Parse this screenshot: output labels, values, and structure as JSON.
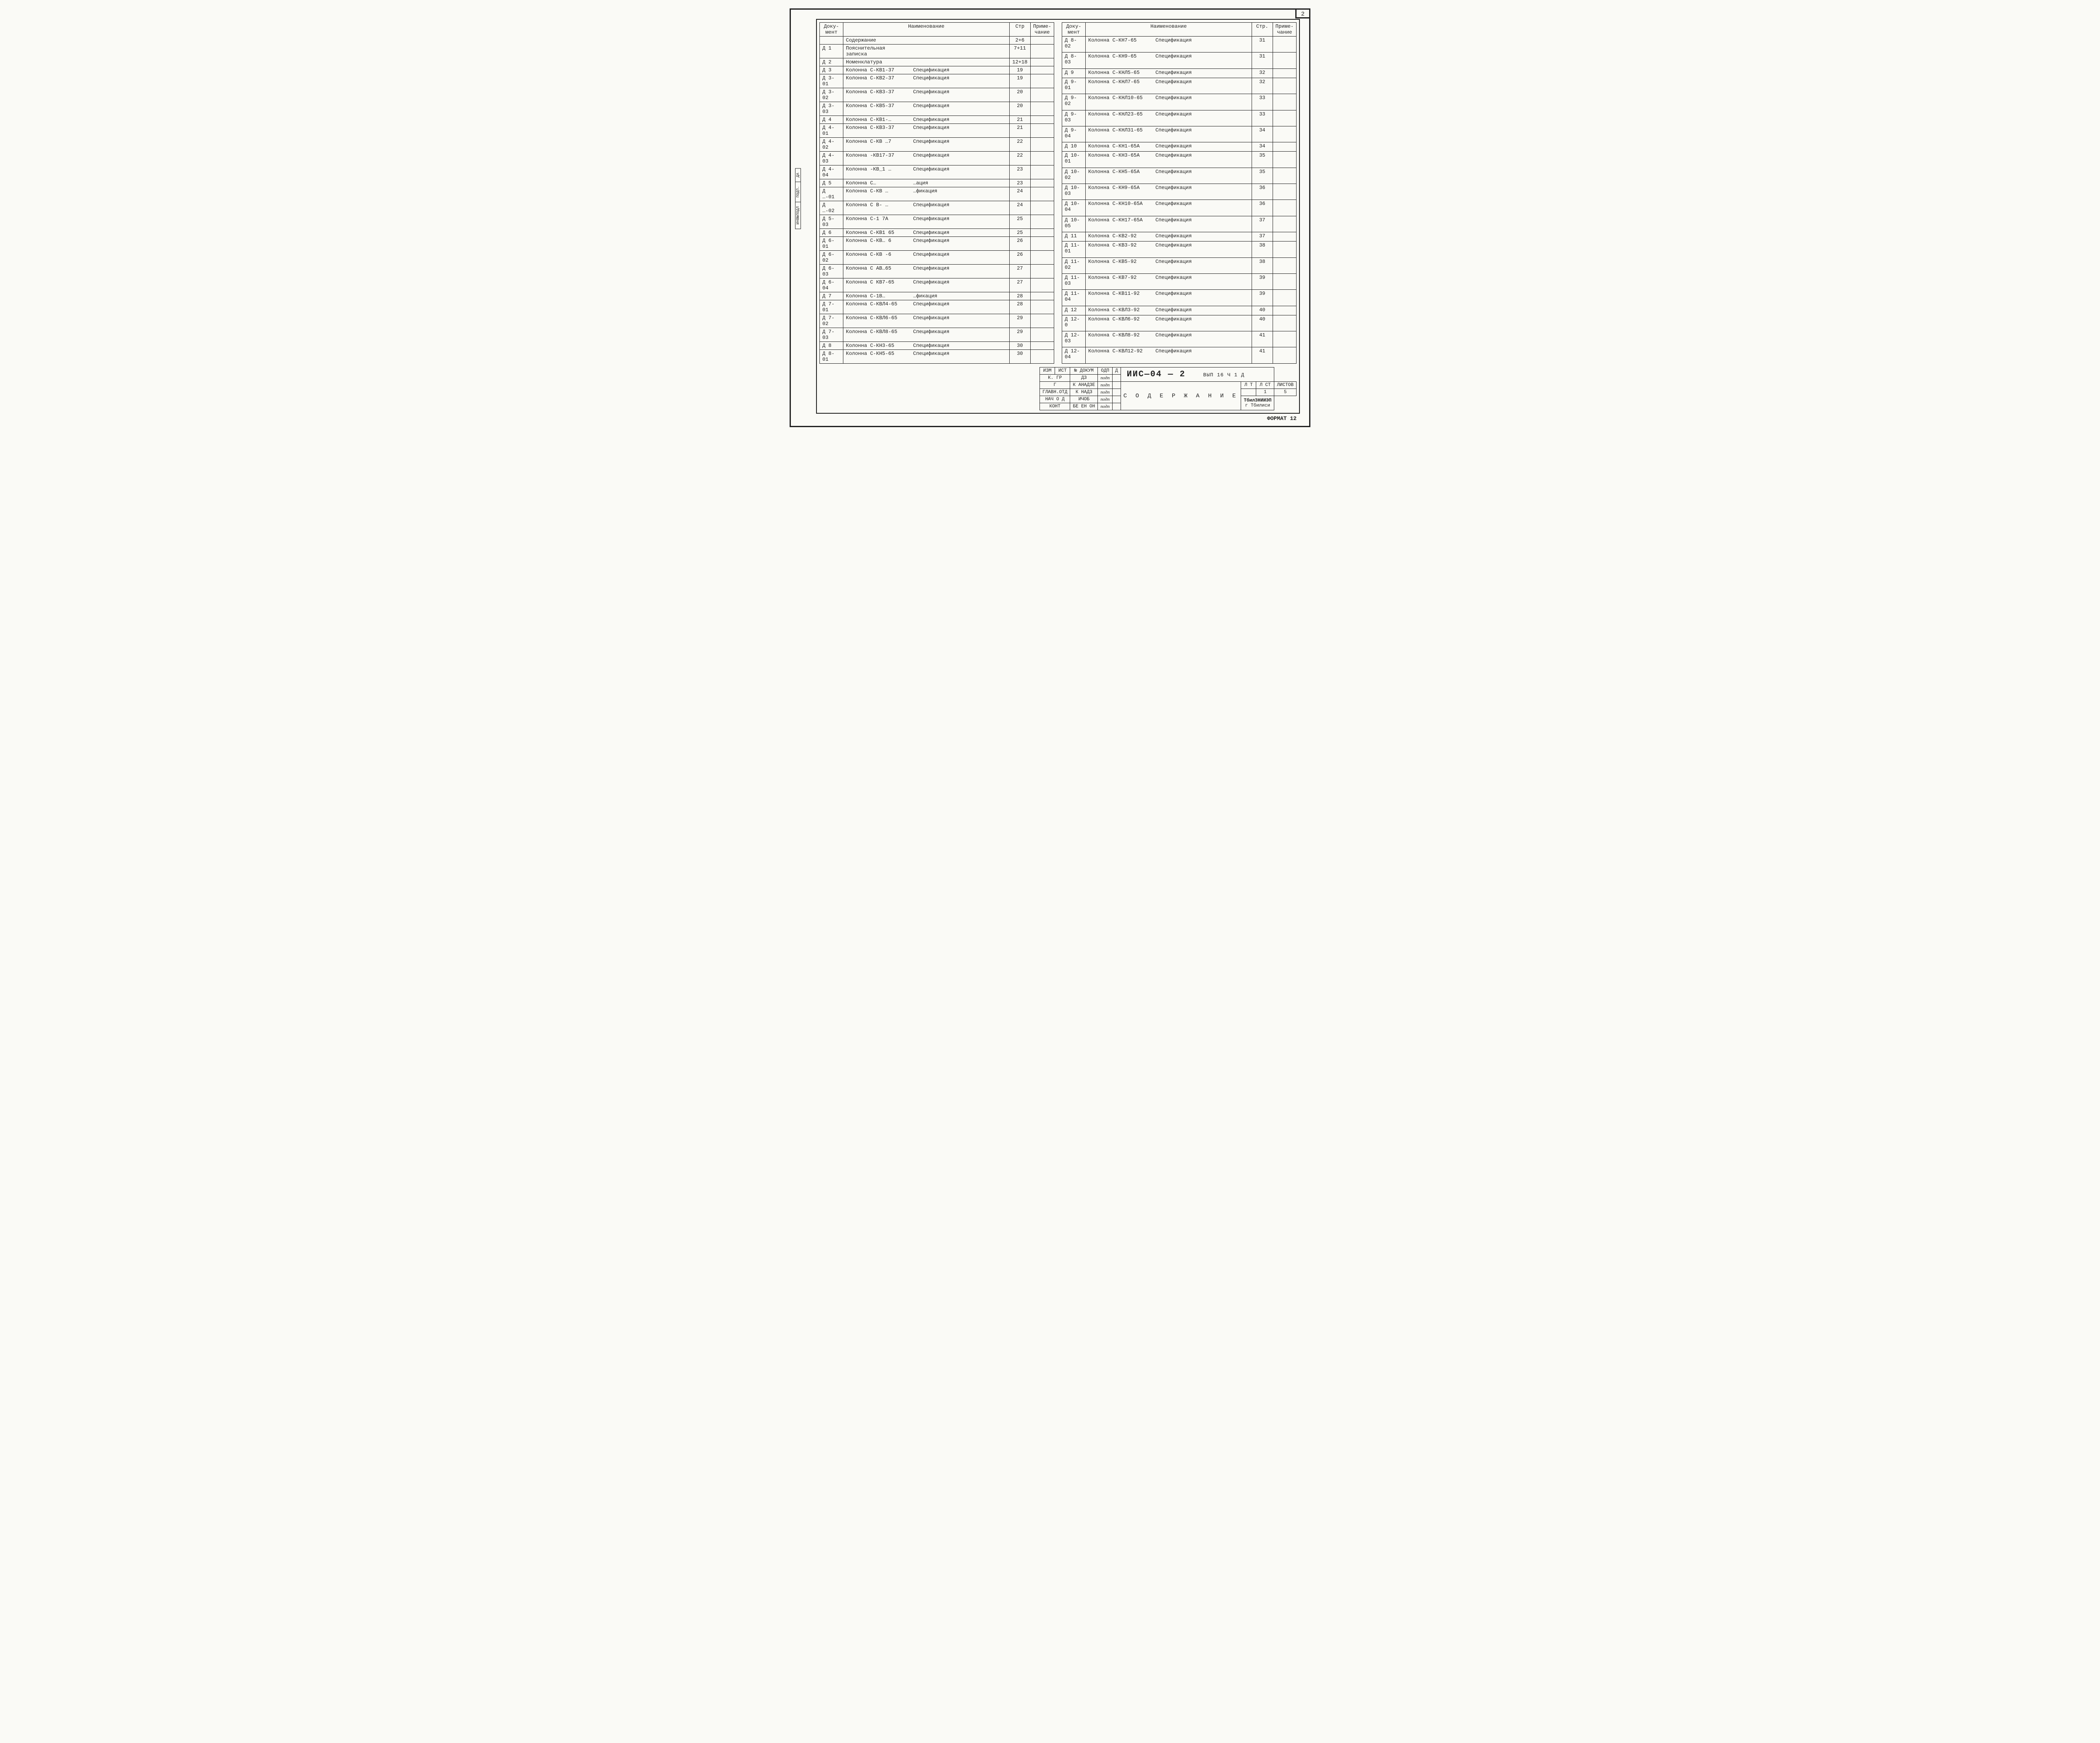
{
  "page_number": "2",
  "format_label": "ФОРМАТ 12",
  "headers": {
    "doc": "Доку-\nмент",
    "name": "Наименование",
    "page": "Стр",
    "note": "Приме-\nчание",
    "page_r": "Стр.",
    "note_r": "Приме-\nчание"
  },
  "side_strip": [
    "ИНВ№ПОДЛ",
    "ПОДП.",
    "ДА"
  ],
  "left": [
    {
      "doc": "",
      "a": "Содержание",
      "b": "",
      "pg": "2+6"
    },
    {
      "doc": "Д 1",
      "a": "Пояснительная записка",
      "b": "",
      "pg": "7+11"
    },
    {
      "doc": "Д 2",
      "a": "Номенклатура",
      "b": "",
      "pg": "12+18"
    },
    {
      "doc": "Д 3",
      "a": "Колонна С-КВ1-37",
      "b": "Спецификация",
      "pg": "19"
    },
    {
      "doc": "Д 3-01",
      "a": "Колонна С-КВ2-37",
      "b": "Спецификация",
      "pg": "19"
    },
    {
      "doc": "Д 3-02",
      "a": "Колонна С-КВ3-37",
      "b": "Спецификация",
      "pg": "20"
    },
    {
      "doc": "Д 3-03",
      "a": "Колонна С-КВ5-37",
      "b": "Спецификация",
      "pg": "20"
    },
    {
      "doc": "Д 4",
      "a": "Колонна С-КВ1-…",
      "b": "Спецификация",
      "pg": "21"
    },
    {
      "doc": "Д 4-01",
      "a": "Колонна С-КВ3-37",
      "b": "Спецификация",
      "pg": "21"
    },
    {
      "doc": "Д 4-02",
      "a": "Колонна С-КВ …7",
      "b": "Спецификация",
      "pg": "22"
    },
    {
      "doc": "Д 4-03",
      "a": "Колонна -КВ17-37",
      "b": "Спецификация",
      "pg": "22"
    },
    {
      "doc": "Д 4-04",
      "a": "Колонна -КВ_1 …",
      "b": "Спецификация",
      "pg": "23"
    },
    {
      "doc": "Д 5",
      "a": "Колонна С…",
      "b": "…ация",
      "pg": "23"
    },
    {
      "doc": "Д …-01",
      "a": "Колонна С-КВ …",
      "b": "…фикация",
      "pg": "24"
    },
    {
      "doc": "Д …-02",
      "a": "Колонна С В- …",
      "b": "Спецификация",
      "pg": "24"
    },
    {
      "doc": "Д 5-03",
      "a": "Колонна С-1 7А",
      "b": "Спецификация",
      "pg": "25"
    },
    {
      "doc": "Д 6",
      "a": "Колонна С-КВ1 65",
      "b": "Спецификация",
      "pg": "25"
    },
    {
      "doc": "Д 6-01",
      "a": "Колонна С-КВ… 6",
      "b": "Спецификация",
      "pg": "26"
    },
    {
      "doc": "Д 6-02",
      "a": "Колонна С-КВ -6",
      "b": "Спецификация",
      "pg": "26"
    },
    {
      "doc": "Д 6-03",
      "a": "Колонна С АВ…65",
      "b": "Спецификация",
      "pg": "27"
    },
    {
      "doc": "Д 6-04",
      "a": "Колонна С КВ7-65",
      "b": "Спецификация",
      "pg": "27"
    },
    {
      "doc": "Д 7",
      "a": "Колонна С-1В…",
      "b": "…фикация",
      "pg": "28"
    },
    {
      "doc": "Д 7-01",
      "a": "Колонна С-КВЛ4-65",
      "b": "Спецификация",
      "pg": "28"
    },
    {
      "doc": "Д 7-02",
      "a": "Колонна С-КВЛ6-65",
      "b": "Спецификация",
      "pg": "29"
    },
    {
      "doc": "Д 7-03",
      "a": "Колонна С-КВЛ8-65",
      "b": "Спецификация",
      "pg": "29"
    },
    {
      "doc": "Д 8",
      "a": "Колонна С-КН3-65",
      "b": "Спецификация",
      "pg": "30"
    },
    {
      "doc": "Д 8-01",
      "a": "Колонна С-КН5-65",
      "b": "Спецификация",
      "pg": "30"
    }
  ],
  "right": [
    {
      "doc": "Д 8-02",
      "a": "Колонна С-КН7-65",
      "b": "Спецификация",
      "pg": "31"
    },
    {
      "doc": "Д 8-03",
      "a": "Колонна С-КН9-65",
      "b": "Спецификация",
      "pg": "31"
    },
    {
      "doc": "Д 9",
      "a": "Колонна С-КНЛ5-65",
      "b": "Спецификация",
      "pg": "32"
    },
    {
      "doc": "Д 9-01",
      "a": "Колонна С-КНЛ7-65",
      "b": "Спецификация",
      "pg": "32"
    },
    {
      "doc": "Д 9-02",
      "a": "Колонна С-КНЛ10-65",
      "b": "Спецификация",
      "pg": "33"
    },
    {
      "doc": "Д 9-03",
      "a": "Колонна С-КНЛ23-65",
      "b": "Спецификация",
      "pg": "33"
    },
    {
      "doc": "Д 9-04",
      "a": "Колонна С-КНЛ31-65",
      "b": "Спецификация",
      "pg": "34"
    },
    {
      "doc": "Д 10",
      "a": "Колонна С-КН1-65А",
      "b": "Спецификация",
      "pg": "34"
    },
    {
      "doc": "Д 10-01",
      "a": "Колонна С-КН3-65А",
      "b": "Спецификация",
      "pg": "35"
    },
    {
      "doc": "Д 10-02",
      "a": "Колонна С-КН5-65А",
      "b": "Спецификация",
      "pg": "35"
    },
    {
      "doc": "Д 10-03",
      "a": "Колонна С-КН9-65А",
      "b": "Спецификация",
      "pg": "36"
    },
    {
      "doc": "Д 10-04",
      "a": "Колонна С-КН10-65А",
      "b": "Спецификация",
      "pg": "36"
    },
    {
      "doc": "Д 10-05",
      "a": "Колонна С-КН17-65А",
      "b": "Спецификация",
      "pg": "37"
    },
    {
      "doc": "Д 11",
      "a": "Колонна С-КВ2-92",
      "b": "Спецификация",
      "pg": "37"
    },
    {
      "doc": "Д 11-01",
      "a": "Колонна С-КВ3-92",
      "b": "Спецификация",
      "pg": "38"
    },
    {
      "doc": "Д 11-02",
      "a": "Колонна С-КВ5-92",
      "b": "Спецификация",
      "pg": "38"
    },
    {
      "doc": "Д 11-03",
      "a": "Колонна С-КВ7-92",
      "b": "Спецификация",
      "pg": "39"
    },
    {
      "doc": "Д 11-04",
      "a": "Колонна С-КВ11-92",
      "b": "Спецификация",
      "pg": "39"
    },
    {
      "doc": "Д 12",
      "a": "Колонна С-КВЛ3-92",
      "b": "Спецификация",
      "pg": "40"
    },
    {
      "doc": "Д 12-0",
      "a": "Колонна С-КВЛ6-92",
      "b": "Спецификация",
      "pg": "40"
    },
    {
      "doc": "Д 12-03",
      "a": "Колонна С-КВЛ8-92",
      "b": "Спецификация",
      "pg": "41"
    },
    {
      "doc": "Д 12-04",
      "a": "Колонна С-КВЛ12-92",
      "b": "Спецификация",
      "pg": "41"
    }
  ],
  "stamp": {
    "approval_headers": [
      "ИЗМ",
      "ИСТ",
      "№ ДОКУМ",
      "ОДП",
      "Д"
    ],
    "roles": [
      {
        "role": "К. ГР",
        "name": "ДЗ",
        "sig": "подп"
      },
      {
        "role": "Г",
        "name": "К   АНАДЗЕ",
        "sig": "подп"
      },
      {
        "role": "ГЛАВН.ОТД",
        "name": "К   НАДЗ",
        "sig": "подп"
      },
      {
        "role": "НАЧ О Д",
        "name": "ИЧОБ",
        "sig": "подп"
      },
      {
        "role": "КОНТ",
        "name": "БЕ ЕН ОН",
        "sig": "подп"
      }
    ],
    "project_code": "ИИС—04 — 2",
    "project_suffix": "ВЫП 16  Ч 1  Д",
    "doc_title": "С О Д Е Р Ж А Н И Е",
    "counts": {
      "lt": "Л Т",
      "lst": "Л СТ",
      "listov": "ЛИСТОВ",
      "lst_val": "1",
      "listov_val": "5"
    },
    "org": "ТбилЗНИИЭП",
    "city": "г Тбилиси"
  }
}
